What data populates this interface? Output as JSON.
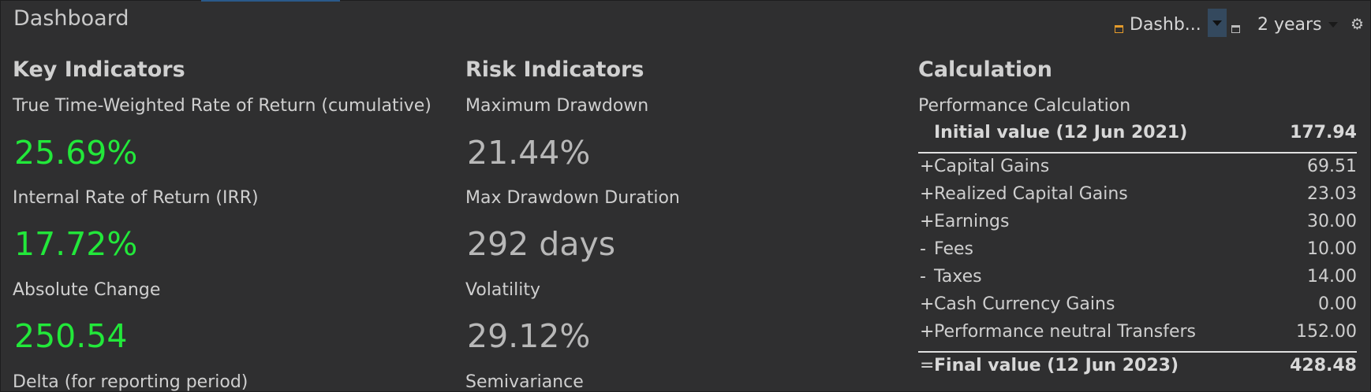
{
  "window": {
    "title": "Dashboard"
  },
  "toolbar": {
    "dashboard_label": "Dashb...",
    "period_label": "2 years",
    "icons": [
      "dashboard-icon",
      "dropdown-icon",
      "view-icon",
      "dropdown-icon",
      "gear-icon"
    ]
  },
  "key_indicators": {
    "title": "Key Indicators",
    "metrics": [
      {
        "label": "True Time-Weighted Rate of Return (cumulative)",
        "value": "25.69%"
      },
      {
        "label": "Internal Rate of Return (IRR)",
        "value": "17.72%"
      },
      {
        "label": "Absolute Change",
        "value": "250.54"
      },
      {
        "label": "Delta (for reporting period)",
        "value": ""
      }
    ]
  },
  "risk_indicators": {
    "title": "Risk Indicators",
    "metrics": [
      {
        "label": "Maximum Drawdown",
        "value": "21.44%"
      },
      {
        "label": "Max Drawdown Duration",
        "value": "292 days"
      },
      {
        "label": "Volatility",
        "value": "29.12%"
      },
      {
        "label": "Semivariance",
        "value": ""
      }
    ]
  },
  "calculation": {
    "title": "Calculation",
    "heading": "Performance Calculation",
    "initial": {
      "label": "Initial value (12 Jun 2021)",
      "value": "177.94"
    },
    "rows": [
      {
        "op": "+",
        "label": "Capital Gains",
        "value": "69.51"
      },
      {
        "op": "+",
        "label": "Realized Capital Gains",
        "value": "23.03"
      },
      {
        "op": "+",
        "label": "Earnings",
        "value": "30.00"
      },
      {
        "op": "-",
        "label": "Fees",
        "value": "10.00"
      },
      {
        "op": "-",
        "label": "Taxes",
        "value": "14.00"
      },
      {
        "op": "+",
        "label": "Cash Currency Gains",
        "value": "0.00"
      },
      {
        "op": "+",
        "label": "Performance neutral Transfers",
        "value": "152.00"
      }
    ],
    "final": {
      "op": "=",
      "label": "Final value (12 Jun 2023)",
      "value": "428.48"
    }
  },
  "colors": {
    "positive": "#22e83a",
    "neutral": "#b8b8b8",
    "background": "#2f2f30"
  }
}
